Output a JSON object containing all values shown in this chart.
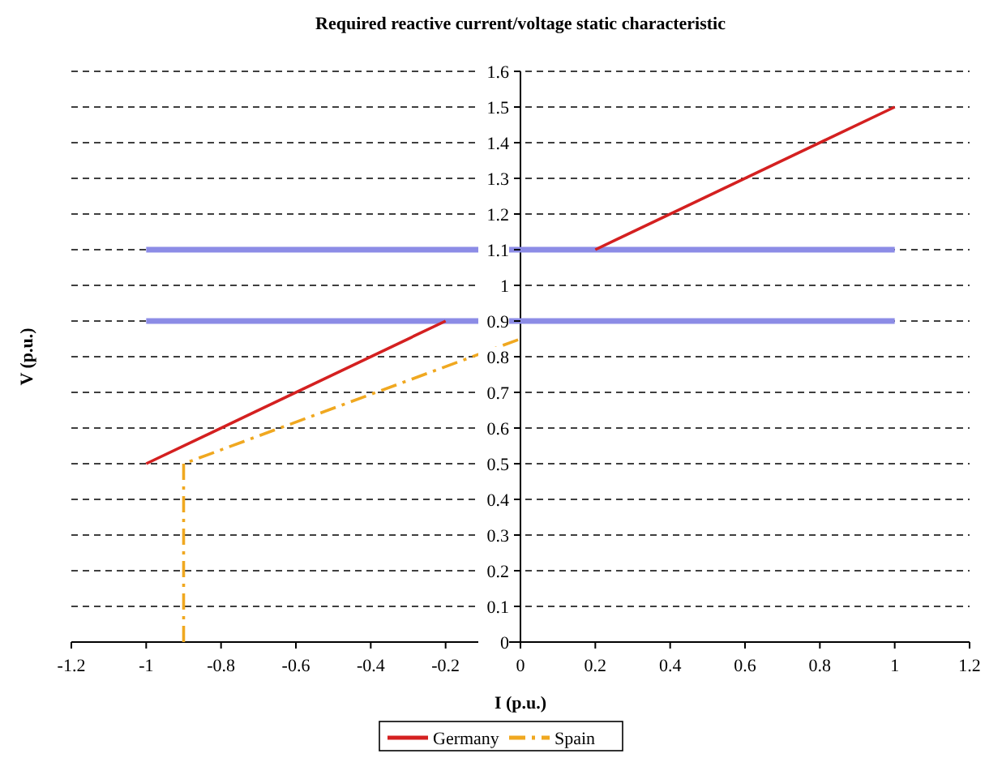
{
  "chart_data": {
    "type": "line",
    "title": "Required reactive current/voltage static characteristic",
    "xlabel": "I (p.u.)",
    "ylabel": "V (p.u.)",
    "xlim": [
      -1.2,
      1.2
    ],
    "xticks": [
      -1.2,
      -1,
      -0.8,
      -0.6,
      -0.4,
      -0.2,
      0,
      0.2,
      0.4,
      0.6,
      0.8,
      1,
      1.2
    ],
    "ylim": [
      0,
      1.6
    ],
    "yticks": [
      0,
      0.1,
      0.2,
      0.3,
      0.4,
      0.5,
      0.6,
      0.7,
      0.8,
      0.9,
      1,
      1.1,
      1.2,
      1.3,
      1.4,
      1.5,
      1.6
    ],
    "grid": "y",
    "legend": "bottom",
    "marker": "none",
    "series": [
      {
        "color": "#8c8ce6",
        "x": [
          -1,
          1
        ],
        "values": [
          1.1,
          1.1
        ],
        "line_style": "solid"
      },
      {
        "color": "#8c8ce6",
        "x": [
          -1,
          1
        ],
        "values": [
          0.9,
          0.9
        ],
        "line_style": "solid"
      },
      {
        "name": "Germany",
        "color": "#d42020",
        "x": [
          -1,
          -0.2
        ],
        "values": [
          0.5,
          0.9
        ],
        "line_style": "solid"
      },
      {
        "color": "#d42020",
        "x": [
          0.2,
          1
        ],
        "values": [
          1.1,
          1.5
        ],
        "line_style": "solid"
      },
      {
        "name": "Spain",
        "color": "#f0a820",
        "x": [
          -0.9,
          -0.9,
          0
        ],
        "values": [
          0,
          0.5,
          0.85
        ],
        "line_style": "dashdot"
      }
    ]
  }
}
